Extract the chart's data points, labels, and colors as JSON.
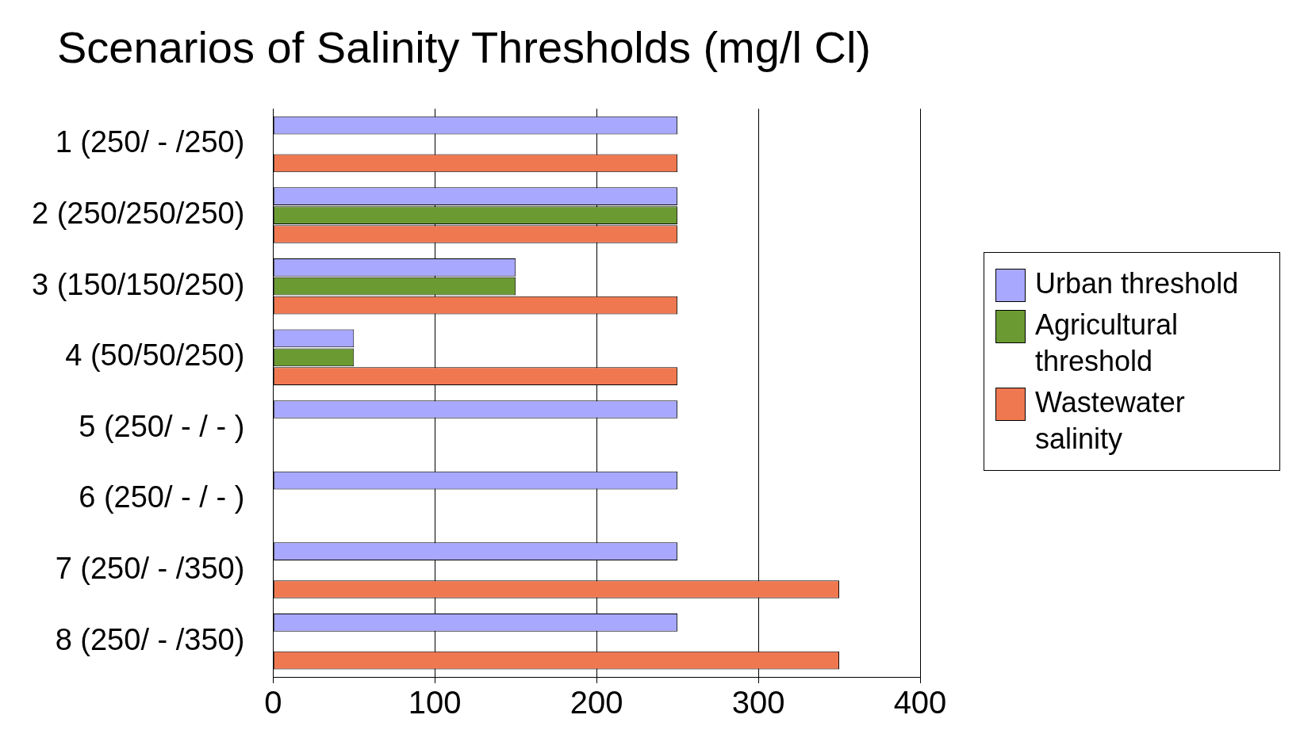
{
  "chart_data": {
    "type": "bar",
    "orientation": "horizontal",
    "title": "Scenarios of Salinity Thresholds (mg/l Cl)",
    "categories": [
      "1 (250/ - /250)",
      "2 (250/250/250)",
      "3 (150/150/250)",
      "4 (50/50/250)",
      "5 (250/ - / - )",
      "6 (250/ - / - )",
      "7 (250/ - /350)",
      "8 (250/ - /350)"
    ],
    "series": [
      {
        "name": "Urban threshold",
        "color": "#a8a8ff",
        "values": [
          250,
          250,
          150,
          50,
          250,
          250,
          250,
          250
        ]
      },
      {
        "name": "Agricultural threshold",
        "color": "#6b9a33",
        "values": [
          null,
          250,
          150,
          50,
          null,
          null,
          null,
          null
        ]
      },
      {
        "name": "Wastewater salinity",
        "color": "#f07850",
        "values": [
          250,
          250,
          250,
          250,
          null,
          null,
          350,
          350
        ]
      }
    ],
    "xlim": [
      0,
      400
    ],
    "xticks": [
      0,
      100,
      200,
      300,
      400
    ],
    "grid": "x",
    "legend": "right"
  }
}
